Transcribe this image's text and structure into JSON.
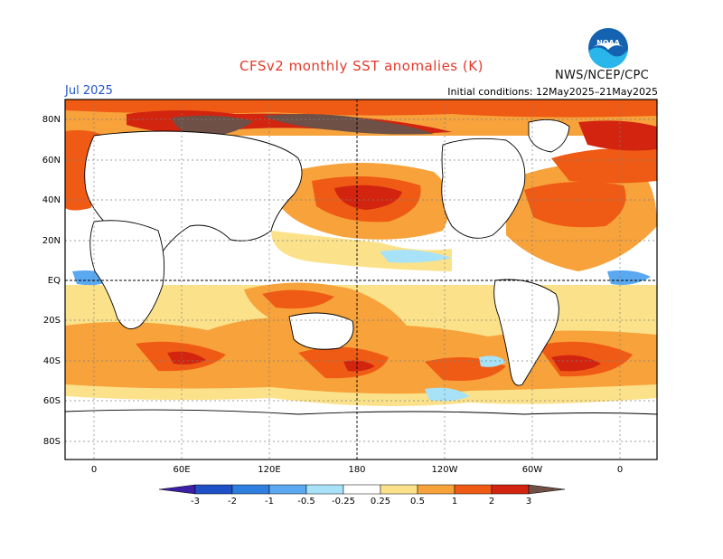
{
  "title": "CFSv2 monthly SST anomalies (K)",
  "valid_month": "Jul 2025",
  "initial_conditions": "Initial conditions: 12May2025–21May2025",
  "agency": "NWS/NCEP/CPC",
  "logo_text": "NOAA",
  "lat_labels": [
    "80N",
    "60N",
    "40N",
    "20N",
    "EQ",
    "20S",
    "40S",
    "60S",
    "80S"
  ],
  "lon_labels": [
    "0",
    "60E",
    "120E",
    "180",
    "120W",
    "60W",
    "0"
  ],
  "colorbar": {
    "tick_labels": [
      "-3",
      "-2",
      "-1",
      "-0.5",
      "-0.25",
      "0.25",
      "0.5",
      "1",
      "2",
      "3"
    ],
    "colors": [
      "#3b1fa6",
      "#1f4fc6",
      "#2f7fe0",
      "#5aa8f0",
      "#a8e2f8",
      "#ffffff",
      "#fbe28a",
      "#f7a23a",
      "#ef5a14",
      "#d2240f",
      "#9d0c0c",
      "#6e5046"
    ]
  },
  "colors": {
    "title": "#e23a2a",
    "month": "#1f55c8",
    "neutral_anomaly": "#ffffff",
    "warm_anomaly_light": "#fbe28a",
    "warm_anomaly_mid": "#f7a23a",
    "warm_anomaly_strong": "#ef5a14",
    "cold_anomaly": "#a8e2f8"
  }
}
